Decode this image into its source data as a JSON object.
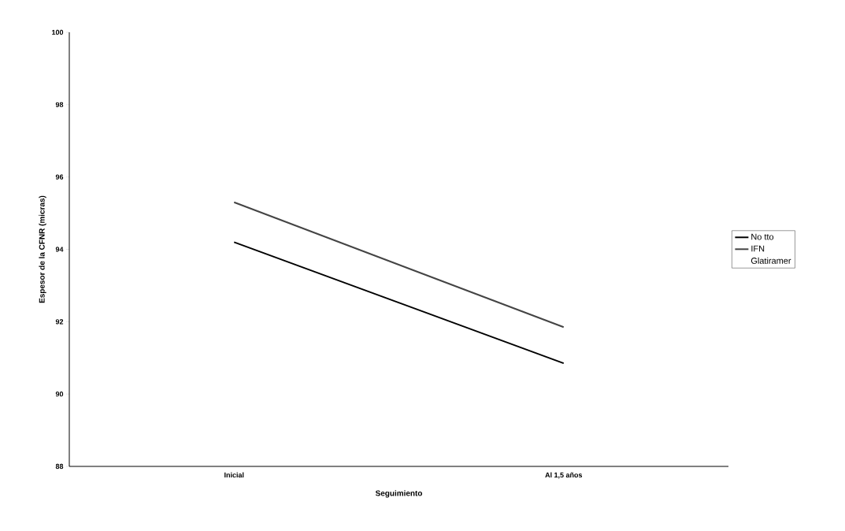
{
  "chart_data": {
    "type": "line",
    "xlabel": "Seguimiento",
    "ylabel": "Espesor de la CFNR (micras)",
    "categories": [
      "Inicial",
      "Al 1,5 años"
    ],
    "series": [
      {
        "name": "No tto",
        "color": "#000000",
        "values": [
          94.2,
          90.85
        ]
      },
      {
        "name": "IFN",
        "color": "#444444",
        "values": [
          95.3,
          91.85
        ]
      },
      {
        "name": "Glatiramer",
        "values": [
          null,
          null
        ]
      }
    ],
    "ylim": [
      88,
      100
    ],
    "yticks": [
      88,
      90,
      92,
      94,
      96,
      98,
      100
    ],
    "grid": false,
    "legend": "right",
    "marker": "none",
    "line_style": "solid"
  }
}
